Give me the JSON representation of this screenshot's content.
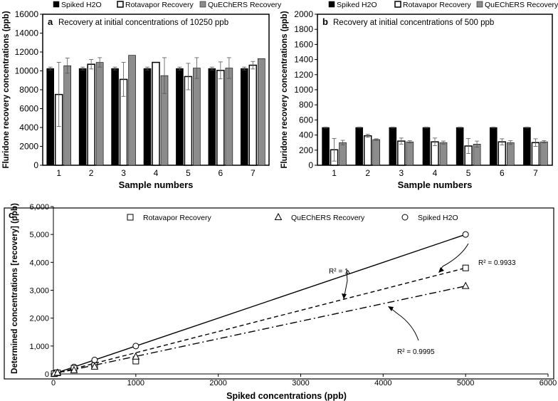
{
  "chart_data": [
    {
      "id": "a",
      "type": "bar",
      "panel_label": "a",
      "title": "Recovery at initial concentrations of 10250 ppb",
      "xlabel": "Sample numbers",
      "ylabel": "Fluridone recovery concentrations (ppb)",
      "ylim": [
        0,
        16000
      ],
      "yticks": [
        "0",
        "2000",
        "4000",
        "6000",
        "8000",
        "10000",
        "12000",
        "14000",
        "16000"
      ],
      "ytick_values": [
        0,
        2000,
        4000,
        6000,
        8000,
        10000,
        12000,
        14000,
        16000
      ],
      "categories": [
        "1",
        "2",
        "3",
        "4",
        "5",
        "6",
        "7"
      ],
      "legend": [
        "Spiked H2O",
        "Rotavapor Recovery",
        "QuEChERS Recovery"
      ],
      "series": [
        {
          "name": "Spiked H2O",
          "color": "#000000",
          "values": [
            10250,
            10250,
            10250,
            10250,
            10250,
            10250,
            10250
          ],
          "errors": [
            150,
            150,
            150,
            150,
            150,
            150,
            150
          ]
        },
        {
          "name": "Rotavapor Recovery",
          "color": "#ffffff",
          "values": [
            7500,
            10700,
            9100,
            10900,
            9400,
            10050,
            10600
          ],
          "errors": [
            3400,
            500,
            1800,
            0,
            1400,
            900,
            400
          ]
        },
        {
          "name": "QuEChERS Recovery",
          "color": "#8c8c8c",
          "values": [
            10550,
            10900,
            11650,
            9500,
            10300,
            10300,
            11300
          ],
          "errors": [
            800,
            500,
            0,
            1900,
            1100,
            1100,
            0
          ]
        }
      ]
    },
    {
      "id": "b",
      "type": "bar",
      "panel_label": "b",
      "title": "Recovery at initial concentrations of 500 ppb",
      "xlabel": "Sample numbers",
      "ylabel": "Fluridone recovery concentrations (ppb)",
      "ylim": [
        0,
        2000
      ],
      "yticks": [
        "0",
        "200",
        "400",
        "600",
        "800",
        "1000",
        "1200",
        "1400",
        "1600",
        "1800",
        "2000"
      ],
      "ytick_values": [
        0,
        200,
        400,
        600,
        800,
        1000,
        1200,
        1400,
        1600,
        1800,
        2000
      ],
      "categories": [
        "1",
        "2",
        "3",
        "4",
        "5",
        "6",
        "7"
      ],
      "legend": [
        "Spiked H2O",
        "Rotavapor Recovery",
        "QuEChERS Recovery"
      ],
      "series": [
        {
          "name": "Spiked H2O",
          "color": "#000000",
          "values": [
            500,
            500,
            500,
            500,
            500,
            500,
            500
          ],
          "errors": [
            5,
            5,
            5,
            5,
            5,
            5,
            5
          ]
        },
        {
          "name": "Rotavapor Recovery",
          "color": "#ffffff",
          "values": [
            205,
            390,
            320,
            310,
            255,
            310,
            300
          ],
          "errors": [
            150,
            20,
            40,
            50,
            100,
            40,
            50
          ]
        },
        {
          "name": "QuEChERS Recovery",
          "color": "#8c8c8c",
          "values": [
            300,
            340,
            310,
            300,
            280,
            300,
            310
          ],
          "errors": [
            30,
            10,
            15,
            20,
            40,
            25,
            15
          ]
        }
      ]
    },
    {
      "id": "c",
      "type": "scatter",
      "panel_label": "c",
      "xlabel": "Spiked concentrations (ppb)",
      "ylabel": "Determined concentrations [recovery] (ppb)",
      "xlim": [
        0,
        6000
      ],
      "ylim": [
        0,
        6000
      ],
      "xticks": [
        "0",
        "1000",
        "2000",
        "3000",
        "4000",
        "5000",
        "6000"
      ],
      "xtick_values": [
        0,
        1000,
        2000,
        3000,
        4000,
        5000,
        6000
      ],
      "yticks": [
        "0",
        "1,000",
        "2,000",
        "3,000",
        "4,000",
        "5,000",
        "6,000"
      ],
      "ytick_values": [
        0,
        1000,
        2000,
        3000,
        4000,
        5000,
        6000
      ],
      "legend": [
        "Rotavapor Recovery",
        "QuEChERS Recovery",
        "Spiked H2O"
      ],
      "series": [
        {
          "name": "Spiked H2O",
          "marker": "circle",
          "line": "solid",
          "x": [
            10,
            50,
            250,
            500,
            1000,
            5000
          ],
          "y": [
            10,
            50,
            250,
            500,
            1000,
            5000
          ],
          "r2": "R² = 1"
        },
        {
          "name": "Rotavapor Recovery",
          "marker": "square",
          "line": "dashed",
          "x": [
            10,
            50,
            250,
            500,
            1000,
            5000
          ],
          "y": [
            8,
            40,
            200,
            300,
            460,
            3800
          ],
          "r2": "R² = 0.9933"
        },
        {
          "name": "QuEChERS Recovery",
          "marker": "triangle",
          "line": "dashdot",
          "x": [
            10,
            50,
            250,
            500,
            1000,
            5000
          ],
          "y": [
            9,
            40,
            130,
            260,
            620,
            3150
          ],
          "r2": "R² = 0.9995"
        }
      ]
    }
  ]
}
